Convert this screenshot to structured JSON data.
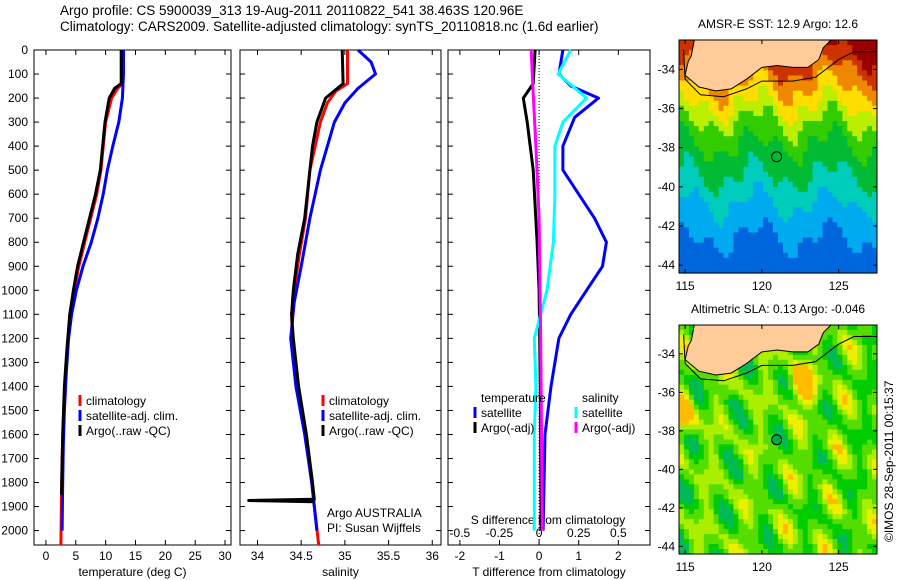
{
  "header": {
    "line1": "Argo profile: CS 5900039_313 19-Aug-2011 20110822_541 38.463S 120.96E",
    "line2": "Climatology: CARS2009. Satellite-adjusted climatology: synTS_20110818.nc (1.6d earlier)"
  },
  "colors": {
    "climatology": "#ff0000",
    "satellite": "#0000ff",
    "argo": "#000000",
    "sal_satellite": "#00ffff",
    "sal_argo": "#ff00ff",
    "land": "#ffcc99"
  },
  "chart_data": [
    {
      "type": "line",
      "title": "",
      "xlabel": "temperature (deg C)",
      "ylabel": "",
      "xlim": [
        -2,
        31
      ],
      "ylim": [
        2060,
        0
      ],
      "xticks": [
        0,
        5,
        10,
        15,
        20,
        25,
        30
      ],
      "yticks": [
        0,
        100,
        200,
        300,
        400,
        500,
        600,
        700,
        800,
        900,
        1000,
        1100,
        1200,
        1300,
        1400,
        1500,
        1600,
        1700,
        1800,
        1900,
        2000
      ],
      "legend": [
        "climatology",
        "satellite-adj. clim.",
        "Argo(..raw -QC)"
      ],
      "legend_placement": "lower-left",
      "series": [
        {
          "name": "climatology",
          "color": "#ff0000",
          "points": [
            [
              12.8,
              0
            ],
            [
              12.8,
              140
            ],
            [
              12,
              160
            ],
            [
              11,
              200
            ],
            [
              10,
              300
            ],
            [
              9.2,
              500
            ],
            [
              8.5,
              600
            ],
            [
              7.5,
              700
            ],
            [
              6.5,
              800
            ],
            [
              5.5,
              900
            ],
            [
              4.7,
              1000
            ],
            [
              4.0,
              1100
            ],
            [
              3.6,
              1250
            ],
            [
              3.2,
              1400
            ],
            [
              2.9,
              1550
            ],
            [
              2.7,
              1700
            ],
            [
              2.6,
              1850
            ],
            [
              2.5,
              2060
            ]
          ]
        },
        {
          "name": "satellite-adj. clim.",
          "color": "#0000ff",
          "points": [
            [
              13,
              0
            ],
            [
              13,
              100
            ],
            [
              12.8,
              200
            ],
            [
              12.2,
              300
            ],
            [
              11.2,
              400
            ],
            [
              10.3,
              500
            ],
            [
              9.6,
              600
            ],
            [
              8.7,
              700
            ],
            [
              7.6,
              800
            ],
            [
              6.2,
              900
            ],
            [
              5.1,
              1000
            ],
            [
              4.3,
              1100
            ],
            [
              3.8,
              1200
            ],
            [
              3.4,
              1350
            ],
            [
              3.1,
              1500
            ],
            [
              2.9,
              1650
            ],
            [
              2.8,
              1800
            ],
            [
              2.7,
              2000
            ]
          ]
        },
        {
          "name": "Argo(..raw -QC)",
          "color": "#000000",
          "points": [
            [
              12.6,
              0
            ],
            [
              12.6,
              140
            ],
            [
              11.5,
              160
            ],
            [
              10.6,
              200
            ],
            [
              9.9,
              300
            ],
            [
              9.1,
              500
            ],
            [
              8.3,
              600
            ],
            [
              7.3,
              700
            ],
            [
              6.3,
              800
            ],
            [
              5.3,
              900
            ],
            [
              4.6,
              1000
            ],
            [
              4.0,
              1100
            ],
            [
              3.5,
              1250
            ],
            [
              3.1,
              1400
            ],
            [
              2.8,
              1600
            ],
            [
              2.6,
              1850
            ]
          ]
        }
      ]
    },
    {
      "type": "line",
      "title": "",
      "xlabel": "salinity",
      "ylabel": "",
      "xlim": [
        33.8,
        36.1
      ],
      "ylim": [
        2060,
        0
      ],
      "xticks": [
        34,
        34.5,
        35,
        35.5,
        36
      ],
      "legend": [
        "climatology",
        "satellite-adj. clim.",
        "Argo(..raw -QC)"
      ],
      "legend_placement": "lower-right",
      "annotation": [
        "Argo AUSTRALIA",
        "PI: Susan Wijffels"
      ],
      "series": [
        {
          "name": "climatology",
          "color": "#ff0000",
          "points": [
            [
              35.03,
              0
            ],
            [
              35.03,
              140
            ],
            [
              34.9,
              170
            ],
            [
              34.8,
              220
            ],
            [
              34.72,
              300
            ],
            [
              34.66,
              400
            ],
            [
              34.6,
              500
            ],
            [
              34.55,
              700
            ],
            [
              34.48,
              850
            ],
            [
              34.42,
              1000
            ],
            [
              34.39,
              1100
            ],
            [
              34.4,
              1200
            ],
            [
              34.46,
              1400
            ],
            [
              34.55,
              1600
            ],
            [
              34.62,
              1800
            ],
            [
              34.7,
              2060
            ]
          ]
        },
        {
          "name": "satellite-adj. clim.",
          "color": "#0000ff",
          "points": [
            [
              35.15,
              0
            ],
            [
              35.3,
              50
            ],
            [
              35.35,
              100
            ],
            [
              35.15,
              160
            ],
            [
              35.0,
              220
            ],
            [
              34.88,
              300
            ],
            [
              34.8,
              400
            ],
            [
              34.72,
              500
            ],
            [
              34.6,
              700
            ],
            [
              34.5,
              900
            ],
            [
              34.42,
              1050
            ],
            [
              34.38,
              1200
            ],
            [
              34.44,
              1400
            ],
            [
              34.54,
              1600
            ],
            [
              34.62,
              1800
            ],
            [
              34.68,
              2000
            ]
          ]
        },
        {
          "name": "Argo(..raw -QC)",
          "color": "#000000",
          "points": [
            [
              34.97,
              0
            ],
            [
              34.98,
              140
            ],
            [
              34.78,
              200
            ],
            [
              34.68,
              300
            ],
            [
              34.63,
              400
            ],
            [
              34.6,
              500
            ],
            [
              34.54,
              700
            ],
            [
              34.46,
              850
            ],
            [
              34.41,
              1000
            ],
            [
              34.39,
              1100
            ],
            [
              34.41,
              1200
            ],
            [
              34.47,
              1400
            ],
            [
              34.56,
              1600
            ],
            [
              34.63,
              1800
            ],
            [
              34.65,
              1870
            ],
            [
              33.9,
              1875
            ],
            [
              34.65,
              1880
            ]
          ]
        }
      ]
    },
    {
      "type": "line",
      "title": "",
      "xlabel": "T difference from climatology",
      "x2label": "S difference from climatology",
      "xlim": [
        -2.3,
        2.8
      ],
      "x2lim": [
        -0.575,
        0.7
      ],
      "ylim": [
        2060,
        0
      ],
      "xticks": [
        -2,
        -1,
        0,
        1,
        2
      ],
      "x2ticks": [
        -0.5,
        -0.25,
        0,
        0.25,
        0.5
      ],
      "legend": {
        "temperature": "temperature",
        "salinity": "salinity",
        "t_satellite": "satellite",
        "t_argo": "Argo(-adj)",
        "s_satellite": "satellite",
        "s_argo": "Argo(-adj)"
      },
      "legend_placement": "lower-center",
      "series": [
        {
          "name": "temperature satellite",
          "axis": "T",
          "color": "#0000ff",
          "points": [
            [
              0.6,
              0
            ],
            [
              0.5,
              100
            ],
            [
              0.8,
              150
            ],
            [
              1.5,
              200
            ],
            [
              0.9,
              280
            ],
            [
              0.6,
              400
            ],
            [
              0.6,
              500
            ],
            [
              1.0,
              600
            ],
            [
              1.4,
              700
            ],
            [
              1.7,
              800
            ],
            [
              1.6,
              900
            ],
            [
              1.2,
              1000
            ],
            [
              0.8,
              1100
            ],
            [
              0.5,
              1200
            ],
            [
              0.3,
              1400
            ],
            [
              0.15,
              1600
            ],
            [
              0.1,
              2000
            ]
          ]
        },
        {
          "name": "temperature Argo(-adj)",
          "axis": "T",
          "color": "#000000",
          "points": [
            [
              -0.1,
              0
            ],
            [
              -0.15,
              140
            ],
            [
              -0.4,
              200
            ],
            [
              -0.3,
              300
            ],
            [
              -0.15,
              500
            ],
            [
              -0.05,
              800
            ],
            [
              0,
              1000
            ],
            [
              0.03,
              1400
            ],
            [
              0.05,
              2000
            ]
          ]
        },
        {
          "name": "salinity satellite",
          "axis": "S",
          "color": "#00ffff",
          "points": [
            [
              0.2,
              0
            ],
            [
              0.12,
              100
            ],
            [
              0.3,
              200
            ],
            [
              0.15,
              300
            ],
            [
              0.1,
              400
            ],
            [
              0.1,
              600
            ],
            [
              0.09,
              800
            ],
            [
              0.05,
              1000
            ],
            [
              -0.03,
              1200
            ],
            [
              -0.02,
              1400
            ],
            [
              -0.03,
              1600
            ],
            [
              -0.03,
              2000
            ]
          ]
        },
        {
          "name": "salinity Argo(-adj)",
          "axis": "S",
          "color": "#ff00ff",
          "points": [
            [
              -0.05,
              0
            ],
            [
              -0.04,
              150
            ],
            [
              -0.02,
              400
            ],
            [
              0,
              700
            ],
            [
              0.01,
              1200
            ],
            [
              0.02,
              2000
            ]
          ]
        }
      ]
    },
    {
      "type": "heatmap",
      "title": "AMSR-E SST: 12.9 Argo: 12.6",
      "xlim": [
        114.6,
        127.5
      ],
      "ylim": [
        -44.4,
        -32.5
      ],
      "xticks": [
        115,
        120,
        125
      ],
      "yticks": [
        -34,
        -36,
        -38,
        -40,
        -42,
        -44
      ],
      "marker": [
        120.96,
        -38.463
      ]
    },
    {
      "type": "heatmap",
      "title": "Altimetric SLA: 0.13 Argo: -0.046",
      "xlim": [
        114.6,
        127.5
      ],
      "ylim": [
        -44.4,
        -32.5
      ],
      "xticks": [
        115,
        120,
        125
      ],
      "yticks": [
        -34,
        -36,
        -38,
        -40,
        -42,
        -44
      ],
      "marker": [
        120.96,
        -38.463
      ]
    }
  ],
  "footer": {
    "credit": "©IMOS 28-Sep-2011 00:15:37"
  }
}
